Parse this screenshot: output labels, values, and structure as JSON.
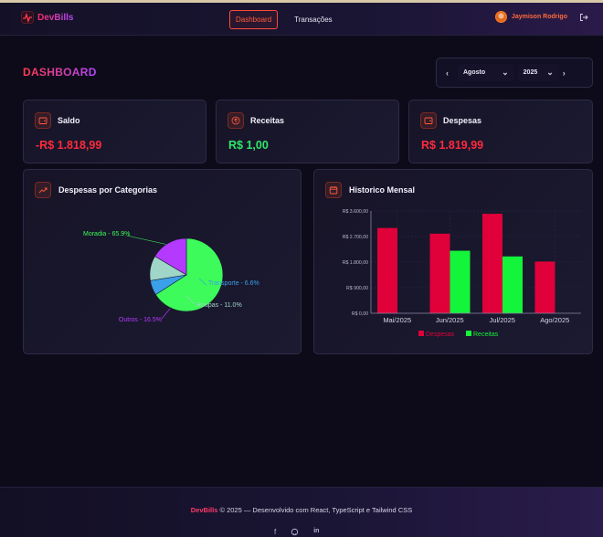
{
  "app": {
    "name": "DevBills"
  },
  "nav": {
    "dashboard_label": "Dashboard",
    "transactions_label": "Transações"
  },
  "user": {
    "name": "Jaymison Rodrigo"
  },
  "page": {
    "title": "DASHBOARD"
  },
  "period": {
    "month": "Agosto",
    "year": "2025"
  },
  "summary": {
    "saldo": {
      "label": "Saldo",
      "value": "-R$ 1.818,99"
    },
    "receitas": {
      "label": "Receitas",
      "value": "R$ 1,00"
    },
    "despesas": {
      "label": "Despesas",
      "value": "R$ 1.819,99"
    }
  },
  "pie_panel": {
    "title": "Despesas por Categorias"
  },
  "bar_panel": {
    "title": "Historico Mensal"
  },
  "footer": {
    "brand": "DevBills",
    "text": "© 2025 — Desenvolvido com React, TypeScript e Tailwind CSS"
  },
  "colors": {
    "expense": "#e0003a",
    "income": "#12f53a",
    "accent": "#ff4a3a"
  },
  "icons": [
    "pulse-icon",
    "logout-icon",
    "chevron-left-icon",
    "chevron-down-icon",
    "chevron-right-icon",
    "wallet-icon",
    "arrow-up-icon",
    "trending-up-icon",
    "calendar-icon",
    "facebook-icon",
    "github-icon",
    "linkedin-icon"
  ],
  "chart_data": [
    {
      "type": "pie",
      "title": "Despesas por Categorias",
      "slices": [
        {
          "label": "Moradia - 65.9%",
          "value": 65.9,
          "color": "#3cfb5a"
        },
        {
          "label": "Transporte - 6.6%",
          "value": 6.6,
          "color": "#3aa0e8"
        },
        {
          "label": "Roupas - 11.0%",
          "value": 11.0,
          "color": "#9fd6c8"
        },
        {
          "label": "Outros - 16.5%",
          "value": 16.5,
          "color": "#b43aff"
        }
      ]
    },
    {
      "type": "bar",
      "title": "Historico Mensal",
      "categories": [
        "Mai/2025",
        "Jun/2025",
        "Jul/2025",
        "Ago/2025"
      ],
      "series": [
        {
          "name": "Despesas",
          "color": "#e0003a",
          "values": [
            3000,
            2800,
            3500,
            1820
          ]
        },
        {
          "name": "Receitas",
          "color": "#12f53a",
          "values": [
            0,
            2200,
            2000,
            1
          ]
        }
      ],
      "yticks": [
        "R$ 0,00",
        "R$ 900,00",
        "R$ 1.800,00",
        "R$ 2.700,00",
        "R$ 3.600,00"
      ],
      "ylim": [
        0,
        3600
      ],
      "legend": "bottom",
      "grid": true
    }
  ]
}
